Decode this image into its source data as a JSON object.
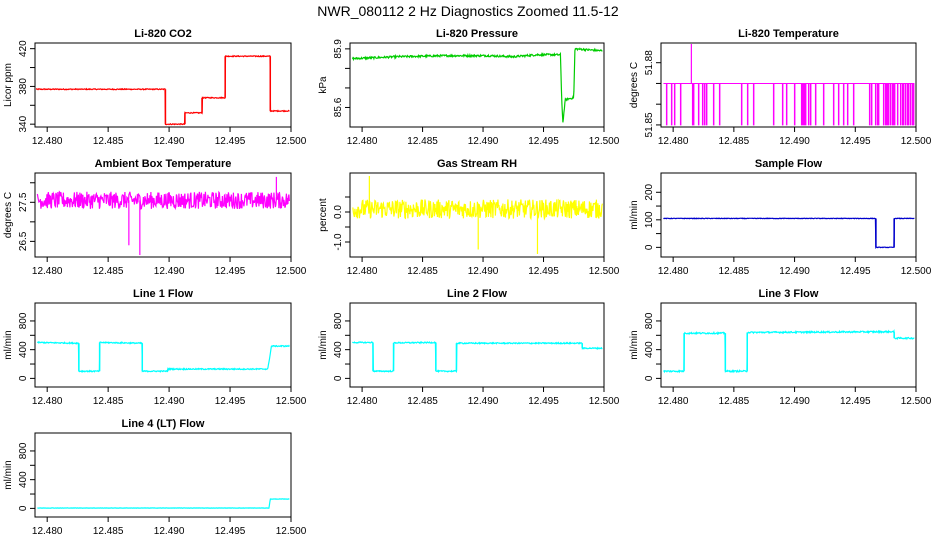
{
  "title": "NWR_080112  2 Hz Diagnostics Zoomed 11.5-12",
  "chart_data": [
    {
      "type": "line",
      "title": "Li-820 CO2",
      "xlabel": "",
      "ylabel": "Licor ppm",
      "xlim": [
        12.479,
        12.5
      ],
      "ylim": [
        337,
        426
      ],
      "xticks": [
        12.48,
        12.485,
        12.49,
        12.495,
        12.5
      ],
      "xtick_labels": [
        "12.480",
        "12.485",
        "12.490",
        "12.495",
        "12.500"
      ],
      "yticks": [
        340,
        360,
        380,
        400,
        420
      ],
      "ytick_labels": [
        "340",
        "",
        "380",
        "",
        "420"
      ],
      "color": "#ff0000",
      "noise": 0.5,
      "series": [
        {
          "x": [
            12.479,
            12.4897,
            12.4897,
            12.4913,
            12.4913,
            12.4927,
            12.4927,
            12.4946,
            12.4946,
            12.4983,
            12.4983,
            12.4999
          ],
          "y": [
            377,
            377,
            340,
            340,
            352,
            352,
            368,
            368,
            412,
            412,
            354,
            354
          ]
        }
      ]
    },
    {
      "type": "line",
      "title": "Li-820 Pressure",
      "xlabel": "",
      "ylabel": "kPa",
      "xlim": [
        12.479,
        12.5
      ],
      "ylim": [
        85.5,
        85.93
      ],
      "xticks": [
        12.48,
        12.485,
        12.49,
        12.495,
        12.5
      ],
      "xtick_labels": [
        "12.480",
        "12.485",
        "12.490",
        "12.495",
        "12.500"
      ],
      "yticks": [
        85.6,
        85.7,
        85.8,
        85.9
      ],
      "ytick_labels": [
        "85.6",
        "",
        "",
        "85.9"
      ],
      "color": "#00cc00",
      "noise": 0.005,
      "series": [
        {
          "x": [
            12.4792,
            12.483,
            12.487,
            12.4905,
            12.4925,
            12.4945,
            12.4964,
            12.4965,
            12.4966,
            12.4968,
            12.4975,
            12.4976,
            12.4999
          ],
          "y": [
            85.85,
            85.86,
            85.865,
            85.865,
            85.86,
            85.87,
            85.87,
            85.65,
            85.52,
            85.64,
            85.65,
            85.9,
            85.89
          ]
        }
      ]
    },
    {
      "type": "line",
      "title": "Li-820 Temperature",
      "xlabel": "",
      "ylabel": "degrees C",
      "xlim": [
        12.479,
        12.5
      ],
      "ylim": [
        51.849,
        51.8895
      ],
      "xticks": [
        12.48,
        12.485,
        12.49,
        12.495,
        12.5
      ],
      "xtick_labels": [
        "12.480",
        "12.485",
        "12.490",
        "12.495",
        "12.500"
      ],
      "yticks": [
        51.85,
        51.86,
        51.87,
        51.88
      ],
      "ytick_labels": [
        "51.85",
        "",
        "",
        "51.88"
      ],
      "color": "#ff00ff",
      "binary": true,
      "levels": [
        51.85,
        51.87
      ],
      "spikes": [
        [
          12.4815,
          51.89
        ]
      ],
      "series": [
        {
          "x": [
            12.4792,
            12.4999
          ],
          "y": [
            51.87,
            51.87
          ]
        }
      ]
    },
    {
      "type": "line",
      "title": "Ambient Box Temperature",
      "xlabel": "",
      "ylabel": "degrees C",
      "xlim": [
        12.479,
        12.5
      ],
      "ylim": [
        26.1,
        28.25
      ],
      "xticks": [
        12.48,
        12.485,
        12.49,
        12.495,
        12.5
      ],
      "xtick_labels": [
        "12.480",
        "12.485",
        "12.490",
        "12.495",
        "12.500"
      ],
      "yticks": [
        26.5,
        27.0,
        27.5,
        28.0
      ],
      "ytick_labels": [
        "26.5",
        "",
        "27.5",
        ""
      ],
      "color": "#ff00ff",
      "noise": 0.22,
      "spikes": [
        [
          12.4867,
          26.4
        ],
        [
          12.4876,
          26.15
        ],
        [
          12.4988,
          28.15
        ]
      ],
      "series": [
        {
          "x": [
            12.4792,
            12.4999
          ],
          "y": [
            27.55,
            27.55
          ]
        }
      ]
    },
    {
      "type": "line",
      "title": "Gas Stream RH",
      "xlabel": "",
      "ylabel": "percent",
      "xlim": [
        12.479,
        12.5
      ],
      "ylim": [
        -1.5,
        1.3
      ],
      "xticks": [
        12.48,
        12.485,
        12.49,
        12.495,
        12.5
      ],
      "xtick_labels": [
        "12.480",
        "12.485",
        "12.490",
        "12.495",
        "12.500"
      ],
      "yticks": [
        -1.0,
        -0.5,
        0.0,
        0.5
      ],
      "ytick_labels": [
        "-1.0",
        "",
        "0.0",
        ""
      ],
      "color": "#ffff00",
      "noise": 0.32,
      "spikes": [
        [
          12.4806,
          1.2
        ],
        [
          12.4896,
          -1.25
        ],
        [
          12.4945,
          -1.4
        ]
      ],
      "series": [
        {
          "x": [
            12.4792,
            12.4999
          ],
          "y": [
            0.1,
            0.1
          ]
        }
      ]
    },
    {
      "type": "line",
      "title": "Sample Flow",
      "xlabel": "",
      "ylabel": "ml/min",
      "xlim": [
        12.479,
        12.5
      ],
      "ylim": [
        -35,
        270
      ],
      "xticks": [
        12.48,
        12.485,
        12.49,
        12.495,
        12.5
      ],
      "xtick_labels": [
        "12.480",
        "12.485",
        "12.490",
        "12.495",
        "12.500"
      ],
      "yticks": [
        0,
        50,
        100,
        150,
        200
      ],
      "ytick_labels": [
        "0",
        "",
        "100",
        "",
        "200"
      ],
      "color": "#0000cc",
      "noise": 1,
      "series": [
        {
          "x": [
            12.4792,
            12.4967,
            12.4967,
            12.4982,
            12.4982,
            12.4999
          ],
          "y": [
            105,
            105,
            0,
            0,
            105,
            105
          ]
        }
      ]
    },
    {
      "type": "line",
      "title": "Line 1 Flow",
      "xlabel": "",
      "ylabel": "ml/min",
      "xlim": [
        12.479,
        12.5
      ],
      "ylim": [
        -120,
        1050
      ],
      "xticks": [
        12.48,
        12.485,
        12.49,
        12.495,
        12.5
      ],
      "xtick_labels": [
        "12.480",
        "12.485",
        "12.490",
        "12.495",
        "12.500"
      ],
      "yticks": [
        0,
        200,
        400,
        600,
        800
      ],
      "ytick_labels": [
        "0",
        "",
        "400",
        "",
        "800"
      ],
      "color": "#00ffff",
      "noise": 8,
      "series": [
        {
          "x": [
            12.4792,
            12.4826,
            12.4826,
            12.4843,
            12.4843,
            12.4878,
            12.4878,
            12.4899,
            12.4899,
            12.4981,
            12.4984,
            12.4999
          ],
          "y": [
            500,
            490,
            100,
            100,
            500,
            490,
            100,
            100,
            130,
            130,
            450,
            450
          ]
        }
      ]
    },
    {
      "type": "line",
      "title": "Line 2 Flow",
      "xlabel": "",
      "ylabel": "ml/min",
      "xlim": [
        12.479,
        12.5
      ],
      "ylim": [
        -120,
        1050
      ],
      "xticks": [
        12.48,
        12.485,
        12.49,
        12.495,
        12.5
      ],
      "xtick_labels": [
        "12.480",
        "12.485",
        "12.490",
        "12.495",
        "12.500"
      ],
      "yticks": [
        0,
        200,
        400,
        600,
        800
      ],
      "ytick_labels": [
        "0",
        "",
        "400",
        "",
        "800"
      ],
      "color": "#00ffff",
      "noise": 8,
      "series": [
        {
          "x": [
            12.4792,
            12.4809,
            12.4809,
            12.4826,
            12.4826,
            12.4861,
            12.4861,
            12.4878,
            12.4878,
            12.4982,
            12.4982,
            12.4999
          ],
          "y": [
            500,
            500,
            100,
            100,
            495,
            500,
            100,
            100,
            490,
            490,
            420,
            420
          ]
        }
      ]
    },
    {
      "type": "line",
      "title": "Line 3 Flow",
      "xlabel": "",
      "ylabel": "ml/min",
      "xlim": [
        12.479,
        12.5
      ],
      "ylim": [
        -120,
        1050
      ],
      "xticks": [
        12.48,
        12.485,
        12.49,
        12.495,
        12.5
      ],
      "xtick_labels": [
        "12.480",
        "12.485",
        "12.490",
        "12.495",
        "12.500"
      ],
      "yticks": [
        0,
        200,
        400,
        600,
        800
      ],
      "ytick_labels": [
        "0",
        "",
        "400",
        "",
        "800"
      ],
      "color": "#00ffff",
      "noise": 10,
      "series": [
        {
          "x": [
            12.4792,
            12.4809,
            12.4809,
            12.4843,
            12.4843,
            12.4861,
            12.4861,
            12.4982,
            12.4982,
            12.4999
          ],
          "y": [
            100,
            100,
            630,
            630,
            100,
            100,
            640,
            650,
            560,
            560
          ]
        }
      ]
    },
    {
      "type": "line",
      "title": "Line 4 (LT) Flow",
      "xlabel": "",
      "ylabel": "ml/min",
      "xlim": [
        12.479,
        12.5
      ],
      "ylim": [
        -120,
        1050
      ],
      "xticks": [
        12.48,
        12.485,
        12.49,
        12.495,
        12.5
      ],
      "xtick_labels": [
        "12.480",
        "12.485",
        "12.490",
        "12.495",
        "12.500"
      ],
      "yticks": [
        0,
        200,
        400,
        600,
        800
      ],
      "ytick_labels": [
        "0",
        "",
        "400",
        "",
        "800"
      ],
      "color": "#00ffff",
      "noise": 2,
      "series": [
        {
          "x": [
            12.4792,
            12.4982,
            12.4983,
            12.4999
          ],
          "y": [
            5,
            5,
            130,
            130
          ]
        }
      ]
    }
  ]
}
